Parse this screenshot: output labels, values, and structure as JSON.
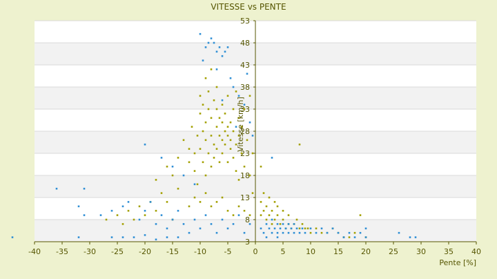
{
  "chart_data": {
    "type": "scatter",
    "title": "VITESSE vs PENTE",
    "xlabel": "Pente [%]",
    "ylabel": "Vitesse [km/h]",
    "xlim": [
      -40,
      40
    ],
    "ylim": [
      3,
      53
    ],
    "x_ticks": [
      -40,
      -35,
      -30,
      -25,
      -20,
      -15,
      -10,
      -5,
      0,
      5,
      10,
      15,
      20,
      25,
      30,
      35,
      40
    ],
    "y_ticks": [
      3,
      8,
      13,
      18,
      23,
      28,
      33,
      38,
      43,
      48,
      53
    ],
    "grid": true,
    "legend": "none",
    "series": [
      {
        "color": "#a3a000",
        "points": [
          [
            -13,
            26
          ],
          [
            -12,
            24
          ],
          [
            -12,
            21
          ],
          [
            -11.5,
            29
          ],
          [
            -11,
            23
          ],
          [
            -11,
            19
          ],
          [
            -10.5,
            27
          ],
          [
            -10.5,
            16
          ],
          [
            -10,
            24
          ],
          [
            -10,
            32
          ],
          [
            -10,
            36
          ],
          [
            -9.5,
            21
          ],
          [
            -9.5,
            28
          ],
          [
            -9.5,
            34
          ],
          [
            -9,
            26
          ],
          [
            -9,
            30
          ],
          [
            -9,
            18
          ],
          [
            -9,
            40
          ],
          [
            -8.5,
            23
          ],
          [
            -8.5,
            33
          ],
          [
            -8.5,
            37
          ],
          [
            -8,
            27
          ],
          [
            -8,
            20
          ],
          [
            -8,
            31
          ],
          [
            -8,
            42
          ],
          [
            -7.5,
            25
          ],
          [
            -7.5,
            35
          ],
          [
            -7.5,
            22
          ],
          [
            -7,
            29
          ],
          [
            -7,
            33
          ],
          [
            -7,
            24
          ],
          [
            -7,
            38
          ],
          [
            -6.5,
            27
          ],
          [
            -6.5,
            21
          ],
          [
            -6.5,
            31
          ],
          [
            -6,
            26
          ],
          [
            -6,
            30
          ],
          [
            -6,
            34
          ],
          [
            -6,
            23
          ],
          [
            -5.5,
            28
          ],
          [
            -5.5,
            25
          ],
          [
            -5.5,
            32
          ],
          [
            -5,
            27
          ],
          [
            -5,
            29
          ],
          [
            -5,
            21
          ],
          [
            -5,
            36
          ],
          [
            -4.5,
            24
          ],
          [
            -4.5,
            26
          ],
          [
            -4.5,
            30
          ],
          [
            -4,
            22
          ],
          [
            -4,
            28
          ],
          [
            -4,
            33
          ],
          [
            -3.5,
            25
          ],
          [
            -3.5,
            19
          ],
          [
            -3.5,
            37
          ],
          [
            -3,
            27
          ],
          [
            -3,
            31
          ],
          [
            -3,
            17
          ],
          [
            -2.5,
            23
          ],
          [
            -2.5,
            29
          ],
          [
            -2,
            20
          ],
          [
            -2,
            33
          ],
          [
            -1.5,
            26
          ],
          [
            -1,
            18
          ],
          [
            -1,
            36
          ],
          [
            -0.5,
            23
          ],
          [
            -0.5,
            14
          ],
          [
            -15,
            18
          ],
          [
            -14,
            22
          ],
          [
            -14,
            15
          ],
          [
            -16,
            20
          ],
          [
            -16,
            12
          ],
          [
            -17,
            14
          ],
          [
            -18,
            17
          ],
          [
            -18,
            10
          ],
          [
            -19,
            12
          ],
          [
            -20,
            9
          ],
          [
            -21,
            11
          ],
          [
            -22,
            8
          ],
          [
            -23,
            10
          ],
          [
            -24,
            7
          ],
          [
            -25,
            9
          ],
          [
            -27,
            8
          ],
          [
            -15,
            8
          ],
          [
            -12,
            11
          ],
          [
            -11,
            13
          ],
          [
            -10,
            12
          ],
          [
            -9,
            14
          ],
          [
            -8,
            11
          ],
          [
            -7,
            12
          ],
          [
            -6,
            13
          ],
          [
            -5,
            10
          ],
          [
            -4,
            9
          ],
          [
            -3,
            11
          ],
          [
            -2,
            10
          ],
          [
            -1,
            9
          ],
          [
            1,
            9
          ],
          [
            1.5,
            10
          ],
          [
            2,
            8
          ],
          [
            2,
            11
          ],
          [
            2.5,
            9
          ],
          [
            3,
            7
          ],
          [
            3,
            10
          ],
          [
            3.5,
            8
          ],
          [
            4,
            9
          ],
          [
            4,
            11
          ],
          [
            4.5,
            7
          ],
          [
            5,
            8
          ],
          [
            5,
            10
          ],
          [
            5.5,
            6
          ],
          [
            6,
            7
          ],
          [
            6,
            9
          ],
          [
            6.5,
            6
          ],
          [
            7,
            7
          ],
          [
            7.5,
            8
          ],
          [
            8,
            6
          ],
          [
            8.5,
            7
          ],
          [
            9,
            6
          ],
          [
            9.5,
            6
          ],
          [
            10,
            5
          ],
          [
            11,
            6
          ],
          [
            12,
            5
          ],
          [
            13,
            5
          ],
          [
            14,
            6
          ],
          [
            15,
            5
          ],
          [
            16,
            4
          ],
          [
            17,
            4
          ],
          [
            18,
            5
          ],
          [
            19,
            9
          ],
          [
            20,
            4
          ],
          [
            8,
            25
          ],
          [
            1,
            12
          ],
          [
            1.5,
            14
          ],
          [
            2.5,
            13
          ],
          [
            3.5,
            12
          ],
          [
            1,
            20
          ]
        ]
      },
      {
        "color": "#2f8fd5",
        "points": [
          [
            -10,
            50
          ],
          [
            -9,
            47
          ],
          [
            -8.5,
            48
          ],
          [
            -8,
            49
          ],
          [
            -7.5,
            48
          ],
          [
            -7,
            46
          ],
          [
            -6.5,
            47
          ],
          [
            -6,
            45
          ],
          [
            -5.5,
            46
          ],
          [
            -5,
            47
          ],
          [
            -9.5,
            44
          ],
          [
            -7,
            42
          ],
          [
            -4.5,
            40
          ],
          [
            -4,
            38
          ],
          [
            -3,
            36
          ],
          [
            -2,
            34
          ],
          [
            -1,
            30
          ],
          [
            -0.5,
            27
          ],
          [
            -3.5,
            29
          ],
          [
            -6,
            35
          ],
          [
            -1.5,
            41
          ],
          [
            -36,
            15
          ],
          [
            -31,
            15
          ],
          [
            -32,
            11
          ],
          [
            -31,
            9
          ],
          [
            -28,
            9
          ],
          [
            -26,
            10
          ],
          [
            -24,
            11
          ],
          [
            -23,
            12
          ],
          [
            -21,
            8
          ],
          [
            -20,
            10
          ],
          [
            -19,
            12
          ],
          [
            -18,
            7
          ],
          [
            -17,
            9
          ],
          [
            -16,
            6
          ],
          [
            -15,
            8
          ],
          [
            -14,
            10
          ],
          [
            -13,
            7
          ],
          [
            -12,
            5
          ],
          [
            -11,
            8
          ],
          [
            -10,
            6
          ],
          [
            -9,
            9
          ],
          [
            -8,
            7
          ],
          [
            -7,
            5
          ],
          [
            -6,
            8
          ],
          [
            -5,
            6
          ],
          [
            -4,
            7
          ],
          [
            -3,
            9
          ],
          [
            -2,
            5
          ],
          [
            -1,
            7
          ],
          [
            -14,
            4
          ],
          [
            -16,
            4
          ],
          [
            -18,
            3.5
          ],
          [
            -20,
            4.5
          ],
          [
            -22,
            4
          ],
          [
            -24,
            4
          ],
          [
            -26,
            4
          ],
          [
            -32,
            4
          ],
          [
            -44,
            4
          ],
          [
            -20,
            25
          ],
          [
            -17,
            22
          ],
          [
            -15,
            20
          ],
          [
            -13,
            18
          ],
          [
            -11,
            16
          ],
          [
            1,
            6
          ],
          [
            1.5,
            5
          ],
          [
            2,
            7
          ],
          [
            2.5,
            6
          ],
          [
            3,
            5
          ],
          [
            3,
            8
          ],
          [
            3.5,
            6
          ],
          [
            4,
            5
          ],
          [
            4,
            7
          ],
          [
            4.5,
            6
          ],
          [
            5,
            5
          ],
          [
            5,
            7
          ],
          [
            5.5,
            6
          ],
          [
            6,
            5
          ],
          [
            6,
            7
          ],
          [
            6.5,
            6
          ],
          [
            7,
            5
          ],
          [
            7,
            7
          ],
          [
            7.5,
            6
          ],
          [
            8,
            5
          ],
          [
            8.5,
            6
          ],
          [
            9,
            5
          ],
          [
            10,
            6
          ],
          [
            11,
            5
          ],
          [
            12,
            6
          ],
          [
            13,
            5
          ],
          [
            14,
            6
          ],
          [
            15,
            5
          ],
          [
            16,
            4
          ],
          [
            17,
            5
          ],
          [
            18,
            4
          ],
          [
            19,
            5
          ],
          [
            20,
            4
          ],
          [
            20,
            6
          ],
          [
            26,
            5
          ],
          [
            28,
            4
          ],
          [
            29,
            4
          ],
          [
            3,
            22
          ],
          [
            2,
            4
          ],
          [
            4,
            4
          ]
        ]
      }
    ]
  }
}
